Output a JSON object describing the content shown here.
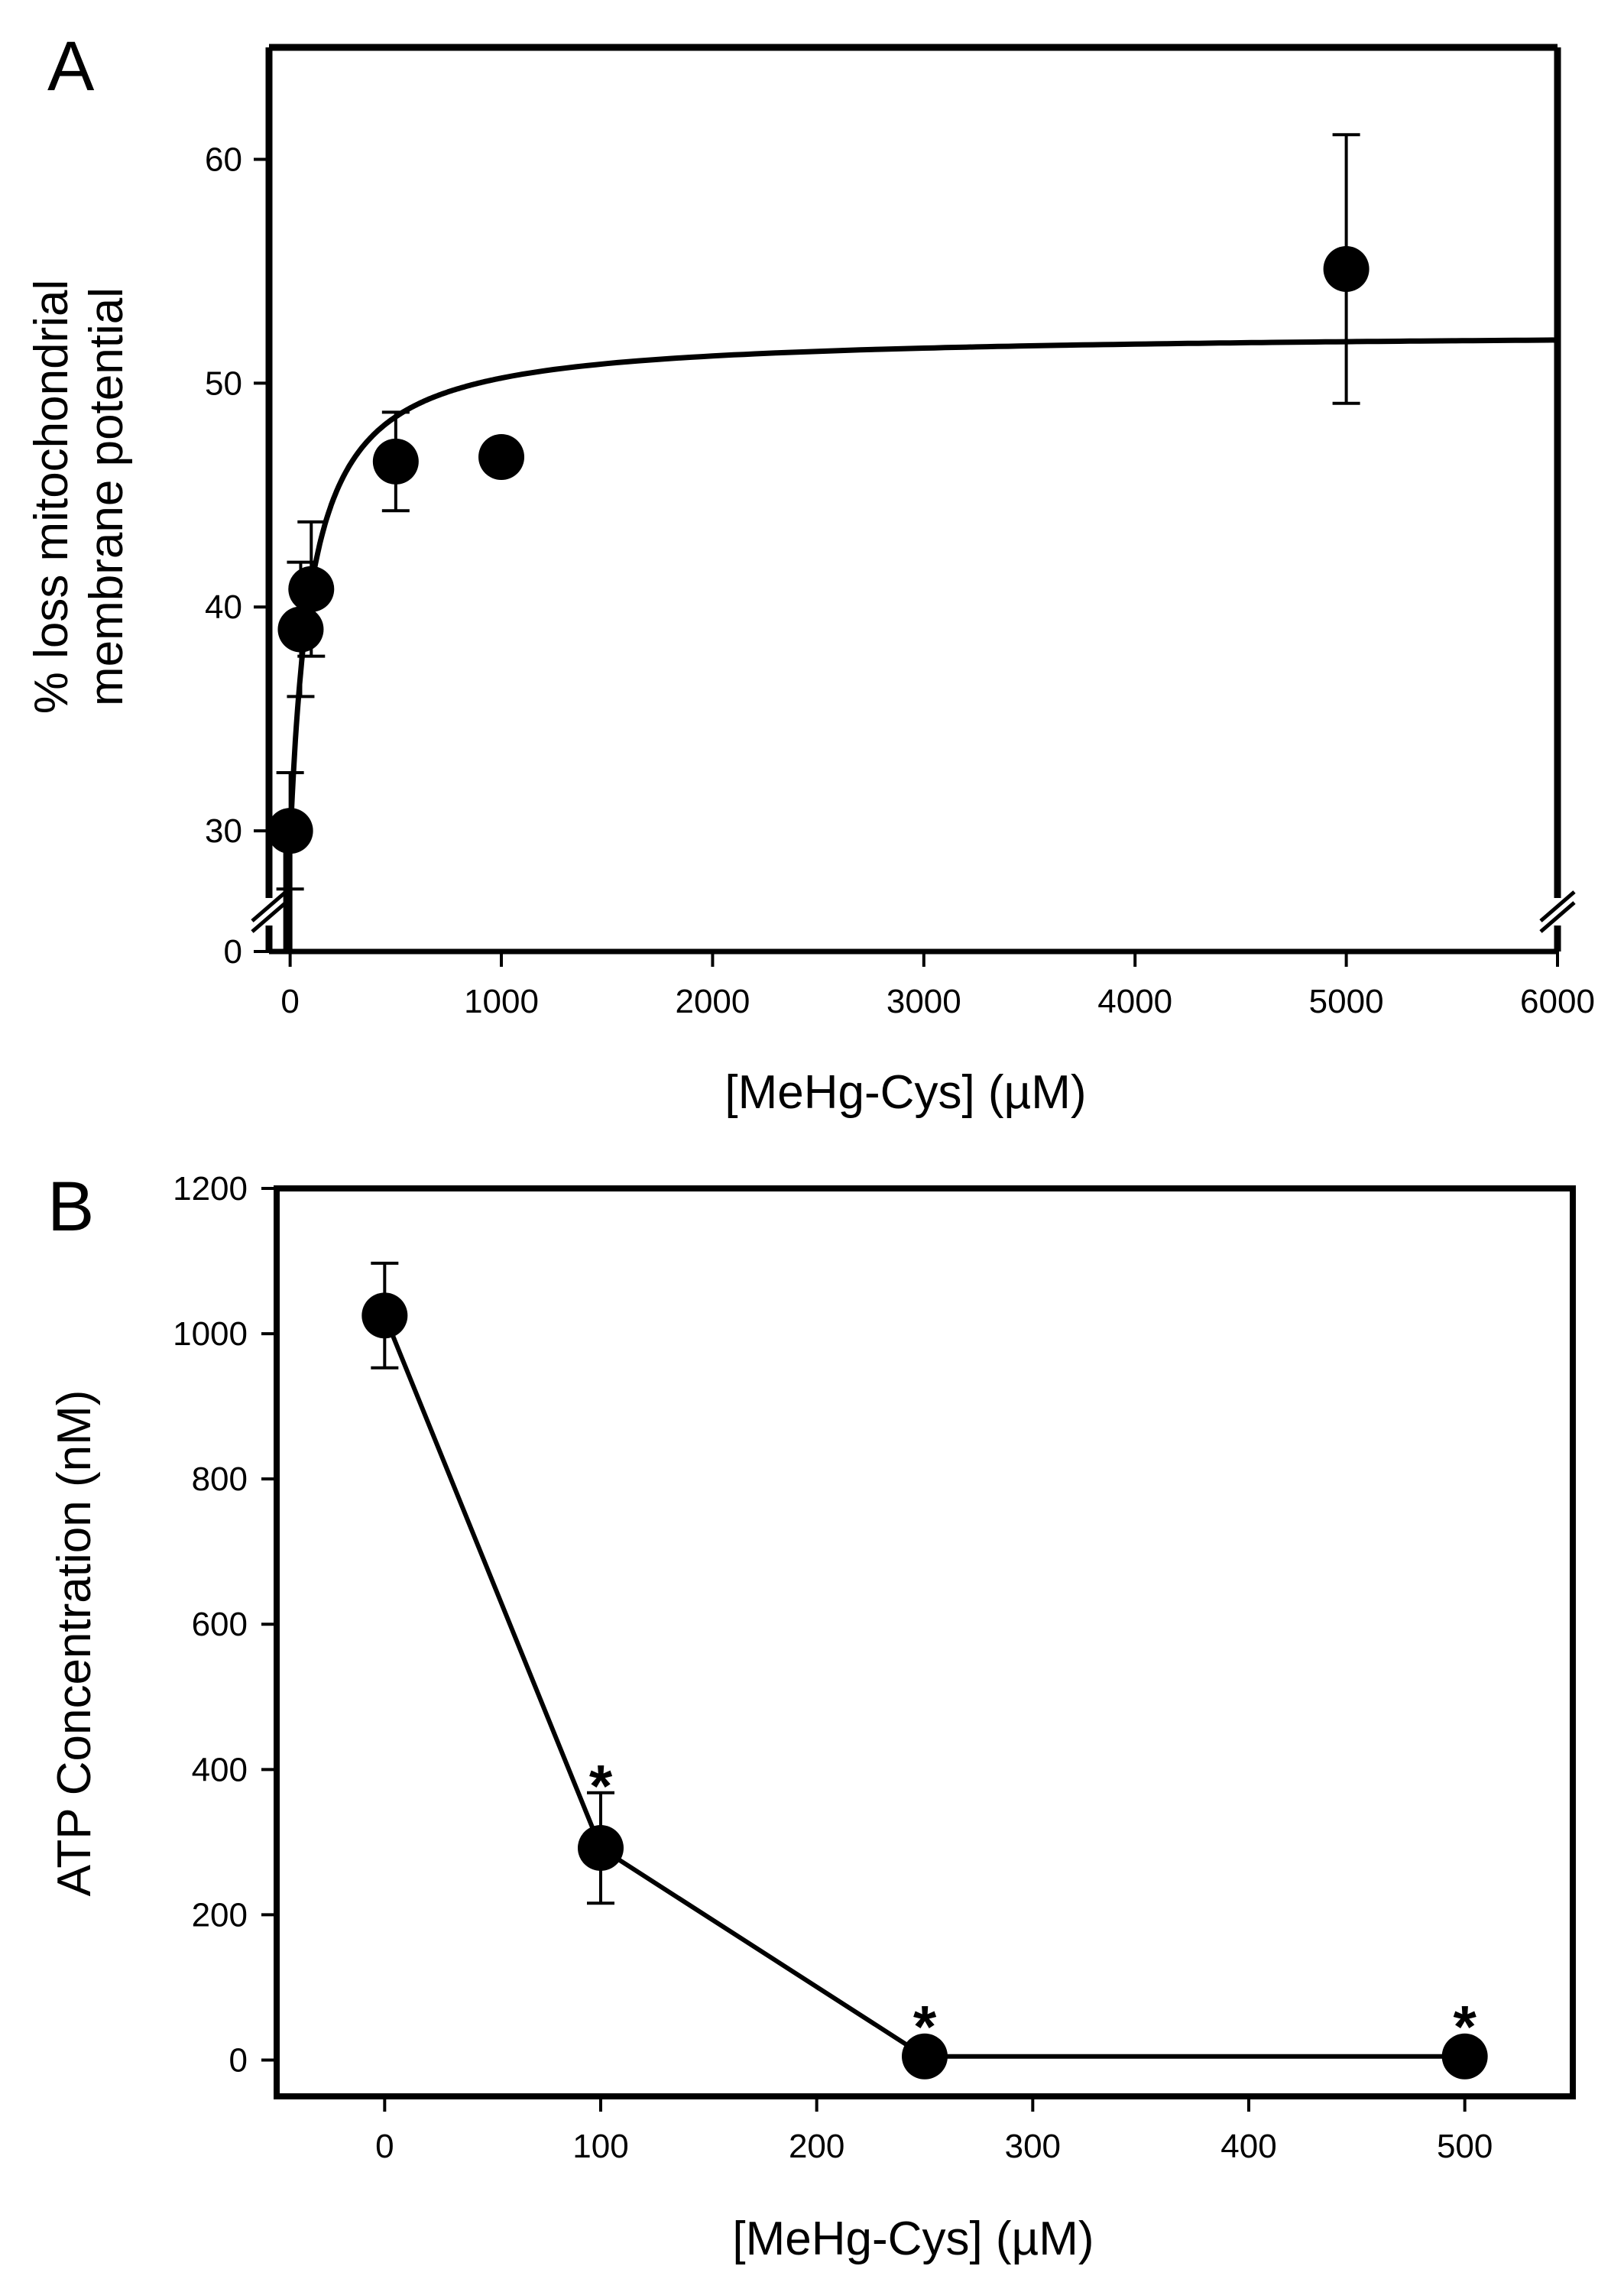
{
  "chart_data": [
    {
      "panel": "A",
      "type": "scatter",
      "title": "",
      "xlabel": "[MeHg-Cys] (µM)",
      "ylabel_line1": "% loss mitochondrial",
      "ylabel_line2": "membrane potential",
      "xlim": [
        -100,
        6000
      ],
      "ylim_broken": {
        "lower": [
          0,
          1
        ],
        "upper": [
          27,
          65
        ]
      },
      "x_ticks": [
        0,
        1000,
        2000,
        3000,
        4000,
        5000,
        6000
      ],
      "x_tick_labels": [
        "0",
        "1000",
        "2000",
        "3000",
        "4000",
        "5000",
        "6000"
      ],
      "y_ticks": [
        30,
        40,
        50,
        60
      ],
      "y_tick_labels": [
        "30",
        "40",
        "50",
        "60"
      ],
      "y_break_tick_label": "0",
      "axis_break": true,
      "grid": false,
      "series": [
        {
          "x": [
            0,
            50,
            100,
            500,
            1000,
            5000
          ],
          "y": [
            30,
            39,
            40.8,
            46.5,
            46.7,
            55.1
          ],
          "err": [
            2.6,
            3,
            3,
            2.2,
            0.5,
            6
          ],
          "marker": "filled-circle"
        }
      ],
      "fit_curve": {
        "type": "hyperbolic",
        "description": "saturating fit, plateau ~52",
        "y0": 29.5,
        "amax": 22.8,
        "k": 100
      }
    },
    {
      "panel": "B",
      "type": "line",
      "title": "",
      "xlabel": "[MeHg-Cys] (µM)",
      "ylabel": "ATP Concentration (nM)",
      "xlim": [
        -50,
        550
      ],
      "ylim": [
        -50,
        1200
      ],
      "x_ticks": [
        0,
        100,
        200,
        300,
        400,
        500
      ],
      "x_tick_labels": [
        "0",
        "100",
        "200",
        "300",
        "400",
        "500"
      ],
      "y_ticks": [
        0,
        200,
        400,
        600,
        800,
        1000,
        1200
      ],
      "y_tick_labels": [
        "0",
        "200",
        "400",
        "600",
        "800",
        "1000",
        "1200"
      ],
      "grid": false,
      "series": [
        {
          "x": [
            0,
            100,
            250,
            500
          ],
          "y": [
            1025,
            292,
            5,
            5
          ],
          "err": [
            72,
            76,
            0,
            0
          ],
          "marker": "filled-circle",
          "significance": [
            "",
            "*",
            "*",
            "*"
          ]
        }
      ]
    }
  ],
  "panel_labels": [
    "A",
    "B"
  ]
}
